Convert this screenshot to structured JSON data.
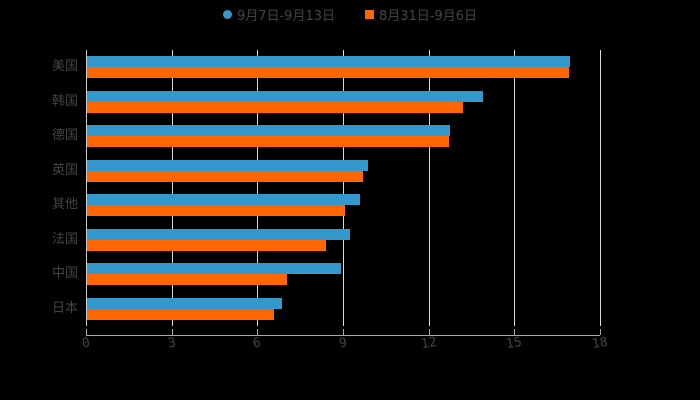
{
  "legend": {
    "series1": {
      "label": "9月7日-9月13日",
      "color": "#3399cc"
    },
    "series2": {
      "label": "8月31日-9月6日",
      "color": "#ff6600"
    }
  },
  "chart_data": {
    "type": "bar",
    "orientation": "horizontal",
    "title": "",
    "xlabel": "",
    "ylabel": "",
    "categories": [
      "美国",
      "韩国",
      "德国",
      "英国",
      "其他",
      "法国",
      "中国",
      "日本"
    ],
    "series": [
      {
        "name": "9月7日-9月13日",
        "color": "#3399cc",
        "values": [
          16.95,
          13.9,
          12.75,
          9.87,
          9.6,
          9.24,
          8.93,
          6.86
        ]
      },
      {
        "name": "8月31日-9月6日",
        "color": "#ff6600",
        "values": [
          16.9,
          13.2,
          12.7,
          9.7,
          9.07,
          8.4,
          7.04,
          6.58
        ]
      }
    ],
    "xlim": [
      0,
      18
    ],
    "xticks": [
      "0",
      "3",
      "6",
      "9",
      "12",
      "15",
      "18"
    ],
    "grid": true,
    "legend_position": "top"
  }
}
